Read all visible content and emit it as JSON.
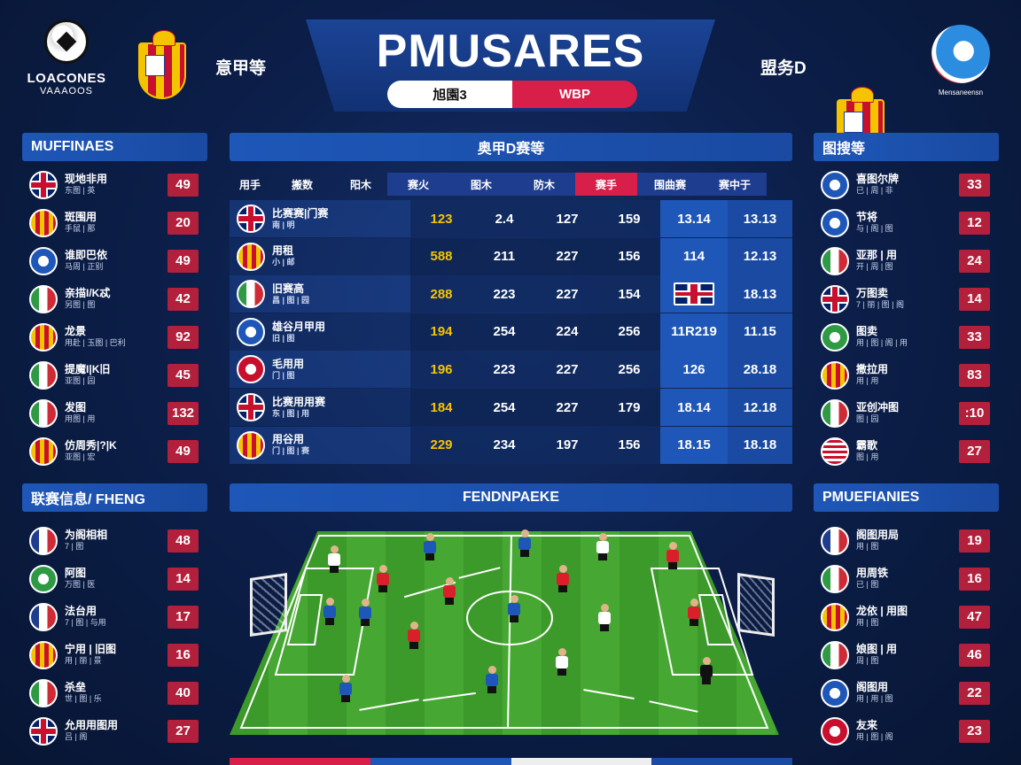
{
  "header": {
    "logo_left_line1": "LOACONES",
    "logo_left_line2": "VAAAOOS",
    "home_team": "意甲等",
    "title": "PMUSARES",
    "toggle_left": "旭園3",
    "toggle_right": "WBP",
    "away_team": "盟务D",
    "logo_right_caption": "Mensaneensn"
  },
  "left_panel": {
    "title": "MUFFINAES",
    "items": [
      {
        "flag": "uk",
        "name": "现地非用",
        "sub": "东图 | 英",
        "value": "49"
      },
      {
        "flag": "esp",
        "name": "斑围用",
        "sub": "手鼠 | 那",
        "value": "20"
      },
      {
        "flag": "blue",
        "name": "谁即巴依",
        "sub": "马周 | 正别",
        "value": "49"
      },
      {
        "flag": "it",
        "name": "亲描I/K忒",
        "sub": "另图 | 图",
        "value": "42"
      },
      {
        "flag": "esp",
        "name": "龙景",
        "sub": "用赴 | 玉图 | 巴利",
        "value": "92"
      },
      {
        "flag": "it",
        "name": "提魔I|K旧",
        "sub": "亚图 | 园",
        "value": "45"
      },
      {
        "flag": "it",
        "name": "发图",
        "sub": "用图 | 用",
        "value": "132"
      },
      {
        "flag": "esp",
        "name": "仿周秀|?|K",
        "sub": "亚图 | 宏",
        "value": "49"
      }
    ]
  },
  "left_panel2": {
    "title": "联赛信息/ FHENG",
    "items": [
      {
        "flag": "fr",
        "name": "为阁相相",
        "sub": "7 | 图",
        "value": "48"
      },
      {
        "flag": "green",
        "name": "阿图",
        "sub": "万图 | 医",
        "value": "14"
      },
      {
        "flag": "fr",
        "name": "法台用",
        "sub": "7 | 图 | 与用",
        "value": "17"
      },
      {
        "flag": "esp",
        "name": "宁用 | 旧图",
        "sub": "用 | 丽 | 景",
        "value": "16"
      },
      {
        "flag": "it",
        "name": "杀垒",
        "sub": "世 | 图 | 乐",
        "value": "40"
      },
      {
        "flag": "uk",
        "name": "允用用图用",
        "sub": "吕 | 阁",
        "value": "27"
      }
    ]
  },
  "center": {
    "table_title": "奥甲D赛等",
    "columns": [
      "用手",
      "搬数",
      "阳木",
      "赛火",
      "图木",
      "防木",
      "赛手",
      "围曲赛",
      "赛中于"
    ],
    "rows": [
      {
        "flag": "uk",
        "name": "比赛赛|门赛",
        "sub": "南 | 明",
        "v1": "123",
        "v2": "2.4",
        "v3": "127",
        "v4": "159",
        "v5": "13.14",
        "v6": "13.13"
      },
      {
        "flag": "esp",
        "name": "用租",
        "sub": "小 | 邮",
        "v1": "588",
        "v2": "211",
        "v3": "227",
        "v4": "156",
        "v5": "114",
        "v6": "12.13"
      },
      {
        "flag": "it",
        "name": "旧赛高",
        "sub": "昌 | 图 | 园",
        "v1": "288",
        "v2": "223",
        "v3": "227",
        "v4": "154",
        "v5": "",
        "v6": "18.13"
      },
      {
        "flag": "blue",
        "name": "雄谷月甲用",
        "sub": "旧 | 图",
        "v1": "194",
        "v2": "254",
        "v3": "224",
        "v4": "256",
        "v5": "11R219",
        "v6": "11.15"
      },
      {
        "flag": "red",
        "name": "毛用用",
        "sub": "门 | 图",
        "v1": "196",
        "v2": "223",
        "v3": "227",
        "v4": "256",
        "v5": "126",
        "v6": "28.18"
      },
      {
        "flag": "uk",
        "name": "比赛用用赛",
        "sub": "东 | 图 | 用",
        "v1": "184",
        "v2": "254",
        "v3": "227",
        "v4": "179",
        "v5": "18.14",
        "v6": "12.18"
      },
      {
        "flag": "esp",
        "name": "用谷用",
        "sub": "门 | 图 | 赛",
        "v1": "229",
        "v2": "234",
        "v3": "197",
        "v4": "156",
        "v5": "18.15",
        "v6": "18.18"
      }
    ],
    "pitch_title": "FENDNPAEKE"
  },
  "right_panel": {
    "title": "图搜等",
    "items": [
      {
        "flag": "blue",
        "name": "喜图尔牌",
        "sub": "已 | 周 | 非",
        "value": "33"
      },
      {
        "flag": "blue",
        "name": "节将",
        "sub": "与 | 阁 | 图",
        "value": "12"
      },
      {
        "flag": "it",
        "name": "亚那 | 用",
        "sub": "开 | 周 | 图",
        "value": "24"
      },
      {
        "flag": "uk",
        "name": "万图卖",
        "sub": "7 | 丽 | 图 | 阁",
        "value": "14"
      },
      {
        "flag": "green",
        "name": "图卖",
        "sub": "用 | 图 | 阁 | 用",
        "value": "33"
      },
      {
        "flag": "esp",
        "name": "撒拉用",
        "sub": "用 | 用",
        "value": "83"
      },
      {
        "flag": "it",
        "name": "亚创冲图",
        "sub": "图 | 园",
        "value": ":10"
      },
      {
        "flag": "us",
        "name": "霸歌",
        "sub": "图 | 用",
        "value": "27"
      }
    ]
  },
  "right_panel2": {
    "title": "PMUEFIANIES",
    "items": [
      {
        "flag": "fr",
        "name": "阁图用局",
        "sub": "用 | 图",
        "value": "19"
      },
      {
        "flag": "it",
        "name": "用周铁",
        "sub": "已 | 图",
        "value": "16"
      },
      {
        "flag": "esp",
        "name": "龙依 | 用图",
        "sub": "用 | 图",
        "value": "47"
      },
      {
        "flag": "it",
        "name": "娘图 | 用",
        "sub": "周 | 图",
        "value": "46"
      },
      {
        "flag": "blue",
        "name": "阁图用",
        "sub": "用 | 用 | 图",
        "value": "22"
      },
      {
        "flag": "red",
        "name": "友来",
        "sub": "用 | 图 | 阁",
        "value": "23"
      }
    ]
  }
}
